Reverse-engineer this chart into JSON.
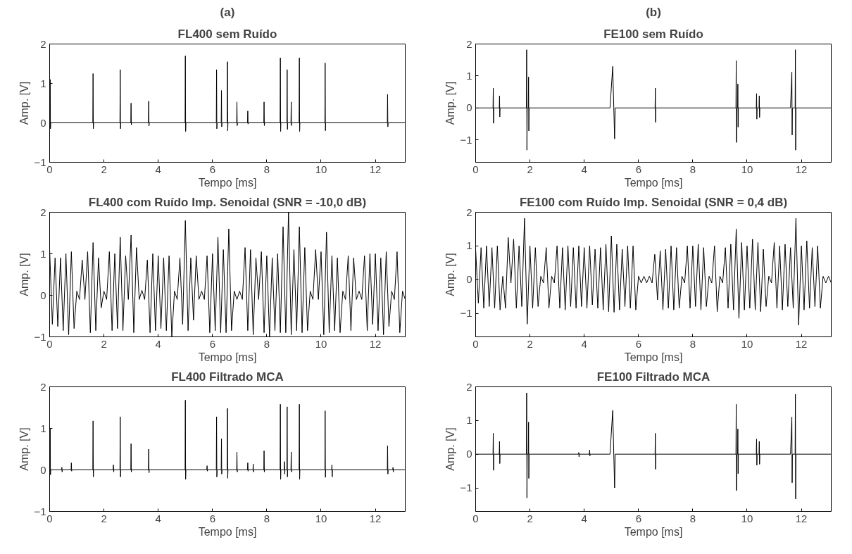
{
  "chart_data": [
    {
      "type": "line",
      "title": "(a)",
      "subtitle": "FL400 sem Ruído",
      "xlabel": "Tempo [ms]",
      "ylabel": "Amp. [V]",
      "xlim": [
        0,
        13.1
      ],
      "ylim": [
        -1,
        2
      ],
      "xticks": [
        0,
        2,
        4,
        6,
        8,
        10,
        12
      ],
      "yticks": [
        -1,
        0,
        1,
        2
      ],
      "x": [
        0,
        0.01,
        0.02,
        0.03,
        0.04,
        1.59,
        1.6,
        1.61,
        1.62,
        2.59,
        2.6,
        2.61,
        2.62,
        2.99,
        3.0,
        3.01,
        3.02,
        3.64,
        3.65,
        3.66,
        3.67,
        4.99,
        5.0,
        5.01,
        5.02,
        6.14,
        6.15,
        6.16,
        6.17,
        6.32,
        6.33,
        6.34,
        6.35,
        6.54,
        6.55,
        6.56,
        6.57,
        6.89,
        6.9,
        6.91,
        6.92,
        7.29,
        7.3,
        7.31,
        7.32,
        7.89,
        7.9,
        7.91,
        7.92,
        8.49,
        8.5,
        8.51,
        8.52,
        8.74,
        8.75,
        8.76,
        8.77,
        8.89,
        8.9,
        8.91,
        8.92,
        9.19,
        9.2,
        9.21,
        9.22,
        10.14,
        10.15,
        10.16,
        10.17,
        12.44,
        12.45,
        12.46,
        12.47,
        13.1
      ],
      "series": [
        {
          "color": "#000000",
          "values": [
            0,
            0,
            1.1,
            -0.15,
            0,
            0,
            1.25,
            -0.15,
            0,
            0,
            1.35,
            -0.15,
            0,
            0,
            0.5,
            -0.05,
            0,
            0,
            0.55,
            -0.08,
            0,
            0,
            1.7,
            -0.22,
            0,
            0,
            1.35,
            -0.15,
            0,
            0,
            0.82,
            -0.1,
            0,
            0,
            1.55,
            -0.2,
            0,
            0,
            0.53,
            -0.07,
            0,
            0,
            0.3,
            -0.03,
            0,
            0,
            0.53,
            -0.07,
            0,
            0,
            1.65,
            -0.22,
            0,
            0,
            1.35,
            -0.17,
            0,
            0,
            0.53,
            -0.07,
            0,
            0,
            1.65,
            -0.22,
            0,
            0,
            1.52,
            -0.2,
            0,
            0,
            0.72,
            -0.1,
            0,
            0
          ]
        }
      ]
    },
    {
      "type": "line",
      "title": "(b)",
      "subtitle": "FE100 sem Ruído",
      "xlabel": "Tempo [ms]",
      "ylabel": "Amp. [V]",
      "xlim": [
        0,
        13.1
      ],
      "ylim": [
        -1.7,
        2
      ],
      "xticks": [
        0,
        2,
        4,
        6,
        8,
        10,
        12
      ],
      "yticks": [
        -1,
        0,
        1,
        2
      ],
      "x": [
        0,
        0.64,
        0.65,
        0.66,
        0.67,
        0.87,
        0.88,
        0.89,
        0.9,
        1.87,
        1.88,
        1.89,
        1.9,
        1.94,
        1.95,
        1.96,
        1.97,
        4.95,
        5.05,
        5.12,
        5.14,
        6.61,
        6.62,
        6.63,
        6.64,
        9.59,
        9.6,
        9.61,
        9.62,
        9.65,
        9.66,
        9.67,
        9.68,
        10.34,
        10.35,
        10.36,
        10.37,
        10.44,
        10.45,
        10.46,
        10.47,
        11.6,
        11.65,
        11.66,
        11.67,
        11.77,
        11.78,
        11.79,
        11.8,
        13.1
      ],
      "series": [
        {
          "color": "#000000",
          "values": [
            0,
            0,
            0.62,
            -0.48,
            0,
            0,
            0.38,
            -0.28,
            0,
            0,
            1.82,
            -1.32,
            0,
            0,
            0.97,
            -0.72,
            0,
            0,
            1.3,
            -0.97,
            0,
            0,
            0.62,
            -0.45,
            0,
            0,
            1.48,
            -1.08,
            0,
            0,
            0.75,
            -0.6,
            0,
            0,
            0.45,
            -0.35,
            0,
            0,
            0.38,
            -0.3,
            0,
            0,
            1.12,
            -0.85,
            0,
            0,
            1.82,
            -1.32,
            0,
            0
          ]
        }
      ]
    },
    {
      "type": "line",
      "title": "FL400 com Ruído Imp. Senoidal (SNR = -10,0 dB)",
      "xlabel": "Tempo [ms]",
      "ylabel": "Amp. [V]",
      "xlim": [
        0,
        13.1
      ],
      "ylim": [
        -1,
        2
      ],
      "xticks": [
        0,
        2,
        4,
        6,
        8,
        10,
        12
      ],
      "yticks": [
        -1,
        0,
        1,
        2
      ],
      "x": [
        0,
        0.1,
        0.2,
        0.3,
        0.4,
        0.5,
        0.6,
        0.7,
        0.8,
        0.9,
        1.0,
        1.1,
        1.2,
        1.3,
        1.4,
        1.5,
        1.6,
        1.7,
        1.8,
        1.9,
        2.0,
        2.1,
        2.2,
        2.3,
        2.4,
        2.5,
        2.6,
        2.7,
        2.8,
        2.9,
        3.0,
        3.1,
        3.2,
        3.3,
        3.4,
        3.5,
        3.6,
        3.7,
        3.8,
        3.9,
        4.0,
        4.1,
        4.2,
        4.3,
        4.4,
        4.5,
        4.6,
        4.7,
        4.8,
        4.9,
        5.0,
        5.1,
        5.2,
        5.3,
        5.4,
        5.5,
        5.6,
        5.7,
        5.8,
        5.9,
        6.0,
        6.1,
        6.2,
        6.3,
        6.4,
        6.5,
        6.6,
        6.7,
        6.8,
        6.9,
        7.0,
        7.1,
        7.2,
        7.3,
        7.4,
        7.5,
        7.6,
        7.7,
        7.8,
        7.9,
        8.0,
        8.1,
        8.2,
        8.3,
        8.4,
        8.5,
        8.6,
        8.7,
        8.8,
        8.9,
        9.0,
        9.1,
        9.2,
        9.3,
        9.4,
        9.5,
        9.6,
        9.7,
        9.8,
        9.9,
        10.0,
        10.1,
        10.2,
        10.3,
        10.4,
        10.5,
        10.6,
        10.7,
        10.8,
        10.9,
        11.0,
        11.1,
        11.2,
        11.3,
        11.4,
        11.5,
        11.6,
        11.7,
        11.8,
        11.9,
        12.0,
        12.1,
        12.2,
        12.3,
        12.4,
        12.5,
        12.6,
        12.7,
        12.8,
        12.9,
        13.0,
        13.1
      ],
      "series": [
        {
          "color": "#000000",
          "values": [
            1.1,
            -0.7,
            0.9,
            -0.75,
            0.9,
            -0.85,
            1.0,
            -0.95,
            1.05,
            -0.8,
            0.1,
            -0.1,
            0.85,
            -0.1,
            1.05,
            -0.9,
            1.27,
            -0.85,
            0.9,
            -0.3,
            0.1,
            -0.1,
            1.05,
            -0.85,
            1.0,
            -0.8,
            1.4,
            -0.85,
            0.95,
            -0.1,
            1.45,
            -0.9,
            1.15,
            -0.1,
            0.12,
            -0.1,
            0.85,
            -0.9,
            1.0,
            -0.85,
            0.95,
            -0.8,
            0.9,
            -0.85,
            0.95,
            -1.0,
            0.1,
            -0.1,
            0.9,
            -0.7,
            1.8,
            -0.85,
            0.9,
            -0.6,
            0.95,
            -0.1,
            0.1,
            -0.1,
            0.95,
            -0.9,
            1.0,
            -0.85,
            1.4,
            -0.9,
            1.1,
            -0.9,
            1.6,
            -0.85,
            0.1,
            -0.1,
            0.1,
            -0.1,
            1.15,
            -0.85,
            1.1,
            -0.95,
            0.9,
            -0.1,
            1.05,
            -0.9,
            0.95,
            -1.0,
            0.9,
            -0.85,
            1.0,
            -0.9,
            1.65,
            -0.9,
            2.0,
            -0.95,
            1.1,
            -0.85,
            1.65,
            -0.9,
            1.15,
            -0.85,
            0.1,
            -0.1,
            1.1,
            -0.1,
            1.05,
            -0.95,
            1.52,
            -0.9,
            0.95,
            -0.85,
            0.9,
            -0.9,
            0.1,
            -0.1,
            0.95,
            -0.85,
            0.9,
            -0.1,
            0.1,
            -0.1,
            0.95,
            -0.85,
            1.0,
            -0.7,
            1.0,
            -0.85,
            0.9,
            -0.95,
            1.05,
            -0.75,
            0.1,
            -0.1,
            1.05,
            -0.9,
            0.1,
            -0.1
          ]
        }
      ]
    },
    {
      "type": "line",
      "title": "FE100 com Ruído Imp. Senoidal (SNR = 0,4 dB)",
      "xlabel": "Tempo [ms]",
      "ylabel": "Amp. [V]",
      "xlim": [
        0,
        13.1
      ],
      "ylim": [
        -1.7,
        2
      ],
      "xticks": [
        0,
        2,
        4,
        6,
        8,
        10,
        12
      ],
      "yticks": [
        -1,
        0,
        1,
        2
      ],
      "x": [
        0,
        0.1,
        0.2,
        0.3,
        0.4,
        0.5,
        0.6,
        0.7,
        0.8,
        0.9,
        1.0,
        1.1,
        1.2,
        1.3,
        1.4,
        1.5,
        1.6,
        1.7,
        1.8,
        1.9,
        2.0,
        2.1,
        2.2,
        2.3,
        2.4,
        2.5,
        2.6,
        2.7,
        2.8,
        2.9,
        3.0,
        3.1,
        3.2,
        3.3,
        3.4,
        3.5,
        3.6,
        3.7,
        3.8,
        3.9,
        4.0,
        4.1,
        4.2,
        4.3,
        4.4,
        4.5,
        4.6,
        4.7,
        4.8,
        4.9,
        5.0,
        5.1,
        5.2,
        5.3,
        5.4,
        5.5,
        5.6,
        5.7,
        5.8,
        5.9,
        6.0,
        6.1,
        6.2,
        6.3,
        6.4,
        6.5,
        6.6,
        6.7,
        6.8,
        6.9,
        7.0,
        7.1,
        7.2,
        7.3,
        7.4,
        7.5,
        7.6,
        7.7,
        7.8,
        7.9,
        8.0,
        8.1,
        8.2,
        8.3,
        8.4,
        8.5,
        8.6,
        8.7,
        8.8,
        8.9,
        9.0,
        9.1,
        9.2,
        9.3,
        9.4,
        9.5,
        9.6,
        9.7,
        9.8,
        9.9,
        10.0,
        10.1,
        10.2,
        10.3,
        10.4,
        10.5,
        10.6,
        10.7,
        10.8,
        10.9,
        11.0,
        11.1,
        11.2,
        11.3,
        11.4,
        11.5,
        11.6,
        11.7,
        11.8,
        11.9,
        12.0,
        12.1,
        12.2,
        12.3,
        12.4,
        12.5,
        12.6,
        12.7,
        12.8,
        12.9,
        13.0,
        13.1
      ],
      "series": [
        {
          "color": "#000000",
          "values": [
            0.9,
            -0.7,
            0.95,
            -0.85,
            1.0,
            -0.8,
            0.95,
            -0.85,
            1.0,
            -0.9,
            0.1,
            -0.85,
            1.25,
            -0.1,
            1.2,
            -0.85,
            1.0,
            -0.8,
            1.82,
            -1.32,
            1.0,
            -0.85,
            0.95,
            -0.8,
            0.1,
            -0.1,
            0.95,
            -0.85,
            0.1,
            -0.1,
            1.0,
            -0.85,
            0.95,
            -0.9,
            1.0,
            -0.8,
            0.95,
            -0.85,
            1.0,
            -0.8,
            0.95,
            -0.85,
            1.0,
            -0.75,
            0.9,
            -0.85,
            0.95,
            -0.9,
            1.05,
            -0.95,
            1.3,
            -0.97,
            1.05,
            -0.9,
            0.9,
            -0.8,
            1.0,
            -0.85,
            1.0,
            -0.9,
            0.1,
            -0.1,
            0.1,
            -0.1,
            0.1,
            -0.1,
            0.75,
            -0.6,
            0.85,
            -0.9,
            0.9,
            -0.85,
            1.0,
            -0.9,
            0.95,
            -0.85,
            0.1,
            -0.1,
            1.0,
            -0.85,
            1.0,
            -0.8,
            1.05,
            -0.9,
            0.95,
            -0.8,
            0.1,
            -0.1,
            1.0,
            -0.95,
            0.1,
            -0.1,
            0.95,
            -0.85,
            1.05,
            -0.9,
            1.5,
            -1.15,
            1.1,
            -0.9,
            1.0,
            -0.85,
            1.2,
            -0.9,
            1.1,
            -0.95,
            0.9,
            -0.8,
            0.1,
            -0.1,
            1.1,
            -0.85,
            1.0,
            -0.9,
            1.05,
            -0.8,
            0.95,
            -0.85,
            1.82,
            -1.35,
            1.0,
            -0.9,
            1.15,
            -0.85,
            0.95,
            -0.8,
            1.0,
            -0.85,
            0.1,
            -0.1,
            0.1,
            -0.1
          ]
        }
      ]
    },
    {
      "type": "line",
      "title": "FL400 Filtrado MCA",
      "xlabel": "Tempo [ms]",
      "ylabel": "Amp. [V]",
      "xlim": [
        0,
        13.1
      ],
      "ylim": [
        -1,
        2
      ],
      "xticks": [
        0,
        2,
        4,
        6,
        8,
        10,
        12
      ],
      "yticks": [
        -1,
        0,
        1,
        2
      ],
      "x": [
        0,
        0.01,
        0.02,
        0.03,
        0.04,
        0.44,
        0.45,
        0.46,
        0.47,
        0.79,
        0.8,
        0.81,
        0.82,
        1.59,
        1.6,
        1.61,
        1.62,
        2.34,
        2.35,
        2.36,
        2.37,
        2.59,
        2.6,
        2.61,
        2.62,
        2.99,
        3.0,
        3.01,
        3.02,
        3.64,
        3.65,
        3.66,
        3.67,
        4.99,
        5.0,
        5.01,
        5.02,
        5.79,
        5.8,
        5.81,
        5.82,
        6.14,
        6.15,
        6.16,
        6.17,
        6.32,
        6.33,
        6.34,
        6.35,
        6.54,
        6.55,
        6.56,
        6.57,
        6.89,
        6.9,
        6.91,
        6.92,
        7.29,
        7.3,
        7.31,
        7.32,
        7.49,
        7.5,
        7.51,
        7.52,
        7.89,
        7.9,
        7.91,
        7.92,
        8.49,
        8.5,
        8.51,
        8.52,
        8.64,
        8.65,
        8.66,
        8.67,
        8.74,
        8.75,
        8.76,
        8.77,
        8.89,
        8.9,
        8.91,
        8.92,
        9.19,
        9.2,
        9.21,
        9.22,
        10.14,
        10.15,
        10.16,
        10.17,
        10.39,
        10.4,
        10.41,
        10.42,
        12.44,
        12.45,
        12.46,
        12.47,
        12.64,
        12.65,
        12.66,
        12.67,
        13.1
      ],
      "series": [
        {
          "color": "#000000",
          "values": [
            0,
            0,
            1.0,
            -0.12,
            0,
            0,
            0.06,
            -0.05,
            0,
            0,
            0.17,
            -0.03,
            0,
            0,
            1.18,
            -0.17,
            0,
            0,
            0.12,
            -0.05,
            0,
            0,
            1.28,
            -0.17,
            0,
            0,
            0.63,
            -0.05,
            0,
            0,
            0.5,
            -0.07,
            0,
            0,
            1.68,
            -0.23,
            0,
            0,
            0.1,
            -0.03,
            0,
            0,
            1.28,
            -0.17,
            0,
            0,
            0.75,
            -0.1,
            0,
            0,
            1.48,
            -0.2,
            0,
            0,
            0.43,
            -0.05,
            0,
            0,
            0.17,
            -0.03,
            0,
            0,
            0.14,
            -0.05,
            0,
            0,
            0.46,
            -0.05,
            0,
            0,
            1.58,
            -0.23,
            0,
            0,
            0.2,
            -0.1,
            0,
            0,
            1.52,
            -0.17,
            0,
            0,
            0.43,
            -0.05,
            0,
            0,
            1.58,
            -0.23,
            0,
            0,
            1.42,
            -0.18,
            0,
            0,
            0.12,
            -0.17,
            0,
            0,
            0.58,
            -0.1,
            0,
            0,
            0.06,
            -0.05,
            0,
            0
          ]
        }
      ]
    },
    {
      "type": "line",
      "title": "FE100 Filtrado MCA",
      "xlabel": "Tempo [ms]",
      "ylabel": "Amp. [V]",
      "xlim": [
        0,
        13.1
      ],
      "ylim": [
        -1.7,
        2
      ],
      "xticks": [
        0,
        2,
        4,
        6,
        8,
        10,
        12
      ],
      "yticks": [
        -1,
        0,
        1,
        2
      ],
      "x": [
        0,
        0.64,
        0.65,
        0.66,
        0.67,
        0.87,
        0.88,
        0.89,
        0.9,
        1.87,
        1.88,
        1.89,
        1.9,
        1.94,
        1.95,
        1.96,
        1.97,
        3.79,
        3.8,
        3.81,
        3.82,
        4.19,
        4.2,
        4.21,
        4.22,
        4.95,
        5.05,
        5.12,
        5.14,
        6.61,
        6.62,
        6.63,
        6.64,
        9.59,
        9.6,
        9.61,
        9.62,
        9.65,
        9.66,
        9.67,
        9.68,
        10.34,
        10.35,
        10.36,
        10.37,
        10.44,
        10.45,
        10.46,
        10.47,
        11.6,
        11.65,
        11.66,
        11.67,
        11.77,
        11.78,
        11.79,
        11.8,
        13.1
      ],
      "series": [
        {
          "color": "#000000",
          "values": [
            0,
            0,
            0.62,
            -0.48,
            0,
            0,
            0.38,
            -0.28,
            0,
            0,
            1.82,
            -1.3,
            0,
            0,
            0.95,
            -0.72,
            0,
            0,
            0.05,
            -0.08,
            0,
            0,
            0.12,
            -0.05,
            0,
            0,
            1.3,
            -1.0,
            0,
            0,
            0.62,
            -0.45,
            0,
            0,
            1.48,
            -1.08,
            0,
            0,
            0.75,
            -0.58,
            0,
            0,
            0.45,
            -0.33,
            0,
            0,
            0.38,
            -0.3,
            0,
            0,
            1.1,
            -0.85,
            0,
            0,
            1.78,
            -1.33,
            0,
            0
          ]
        }
      ]
    }
  ]
}
